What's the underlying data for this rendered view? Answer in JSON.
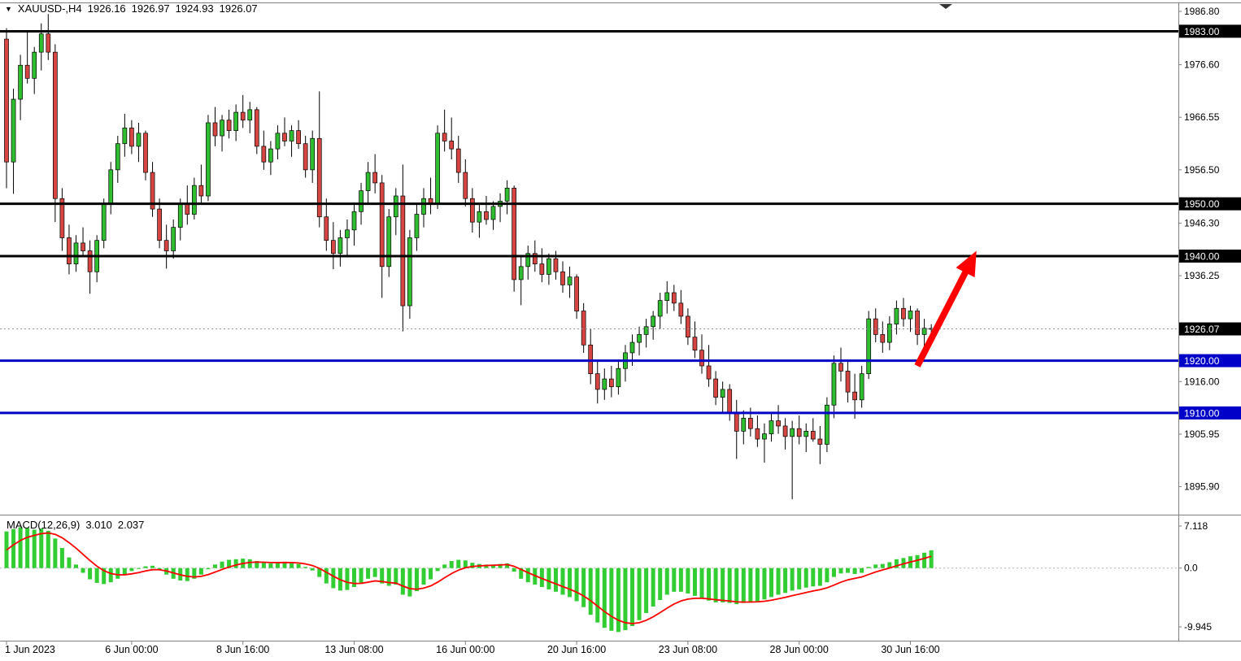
{
  "header": {
    "marker": "▼",
    "symbol_period": "XAUUSD-,H4",
    "open": "1926.16",
    "high": "1926.97",
    "low": "1924.93",
    "close": "1926.07"
  },
  "macd_panel": {
    "name": "MACD(12,26,9)",
    "macd_value": "3.010",
    "signal_value": "2.037"
  },
  "colors": {
    "up": "#2FBE2F",
    "down": "#D64541",
    "wick": "#000000",
    "macd_hist": "#32CD32",
    "signal": "#FF0000",
    "level_black": "#000000",
    "level_blue": "#0000C8",
    "arrow": "#FF0000",
    "border": "#808080",
    "axis_text": "#000000",
    "bg": "#FFFFFF"
  },
  "chart_data": [
    {
      "type": "candlestick",
      "title": "XAUUSD-,H4",
      "ylim": [
        1890.7,
        1988.2
      ],
      "y_ticks": [
        "1986.80",
        "1976.60",
        "1966.55",
        "1956.50",
        "1946.30",
        "1936.25",
        "1916.00",
        "1905.95",
        "1895.90"
      ],
      "x_labels": [
        {
          "bar": 0,
          "label": "1 Jun 2023"
        },
        {
          "bar": 18,
          "label": "6 Jun 00:00"
        },
        {
          "bar": 34,
          "label": "8 Jun 16:00"
        },
        {
          "bar": 50,
          "label": "13 Jun 08:00"
        },
        {
          "bar": 66,
          "label": "16 Jun 00:00"
        },
        {
          "bar": 82,
          "label": "20 Jun 16:00"
        },
        {
          "bar": 98,
          "label": "23 Jun 08:00"
        },
        {
          "bar": 114,
          "label": "28 Jun 00:00"
        },
        {
          "bar": 130,
          "label": "30 Jun 16:00"
        }
      ],
      "levels": [
        {
          "label": "1983.00",
          "value": 1983.0,
          "color": "#000000"
        },
        {
          "label": "1950.00",
          "value": 1950.0,
          "color": "#000000"
        },
        {
          "label": "1940.00",
          "value": 1940.0,
          "color": "#000000"
        },
        {
          "label": "1920.00",
          "value": 1920.0,
          "color": "#0000C8"
        },
        {
          "label": "1910.00",
          "value": 1910.0,
          "color": "#0000C8"
        }
      ],
      "current_price": {
        "label": "1926.07",
        "value": 1926.07
      },
      "annotations": [
        {
          "type": "arrow",
          "color": "#FF0000",
          "from": {
            "bar": 131,
            "price": 1919.0
          },
          "to": {
            "bar": 139.5,
            "price": 1941.0
          }
        }
      ],
      "candles": [
        [
          1981.5,
          1983.6,
          1953,
          1958
        ],
        [
          1958,
          1972,
          1951.9,
          1970
        ],
        [
          1970,
          1978.5,
          1966,
          1976.5
        ],
        [
          1976.5,
          1983,
          1973,
          1974
        ],
        [
          1974,
          1980,
          1971,
          1979
        ],
        [
          1979,
          1984.5,
          1975.5,
          1982.5
        ],
        [
          1982.5,
          1986.3,
          1977.5,
          1979
        ],
        [
          1979,
          1980.5,
          1946.5,
          1951
        ],
        [
          1951,
          1953,
          1941,
          1943.5
        ],
        [
          1943.5,
          1946,
          1936.5,
          1938.5
        ],
        [
          1938.5,
          1944,
          1937,
          1942.5
        ],
        [
          1942.5,
          1945.5,
          1940,
          1941
        ],
        [
          1941,
          1943,
          1932.8,
          1937
        ],
        [
          1937,
          1944,
          1935,
          1943
        ],
        [
          1943,
          1951,
          1941.5,
          1950
        ],
        [
          1950,
          1958,
          1948,
          1956.5
        ],
        [
          1956.5,
          1963,
          1954,
          1961.5
        ],
        [
          1961.5,
          1967.2,
          1959,
          1964.5
        ],
        [
          1964.5,
          1966,
          1959.5,
          1961
        ],
        [
          1961,
          1965.5,
          1958,
          1963.5
        ],
        [
          1963.5,
          1964,
          1954.5,
          1956
        ],
        [
          1956,
          1958,
          1947.5,
          1949
        ],
        [
          1949,
          1951,
          1941.5,
          1943
        ],
        [
          1943,
          1946,
          1937.6,
          1941
        ],
        [
          1941,
          1947,
          1939.5,
          1945.5
        ],
        [
          1945.5,
          1951,
          1943,
          1950
        ],
        [
          1950,
          1953.5,
          1946,
          1948
        ],
        [
          1948,
          1955,
          1947,
          1953.5
        ],
        [
          1953.5,
          1957.5,
          1950,
          1951.5
        ],
        [
          1951.5,
          1967,
          1950.5,
          1965.5
        ],
        [
          1965.5,
          1968.5,
          1961,
          1963
        ],
        [
          1963,
          1967,
          1960,
          1966
        ],
        [
          1966,
          1968,
          1962.5,
          1964
        ],
        [
          1964,
          1969,
          1962,
          1967.5
        ],
        [
          1967.5,
          1970.8,
          1964.5,
          1966
        ],
        [
          1966,
          1969.5,
          1963.5,
          1968
        ],
        [
          1968,
          1968.5,
          1959.5,
          1961
        ],
        [
          1961,
          1964,
          1956.5,
          1958
        ],
        [
          1958,
          1962,
          1955.5,
          1960.5
        ],
        [
          1960.5,
          1965,
          1958.5,
          1963.5
        ],
        [
          1963.5,
          1966.5,
          1961,
          1962
        ],
        [
          1962,
          1965,
          1959,
          1964
        ],
        [
          1964,
          1966,
          1960.5,
          1961.5
        ],
        [
          1961.5,
          1963,
          1955,
          1956.5
        ],
        [
          1956.5,
          1964,
          1954,
          1962.5
        ],
        [
          1962.5,
          1971.5,
          1945.5,
          1947.5
        ],
        [
          1947.5,
          1951,
          1941,
          1943
        ],
        [
          1943,
          1946.5,
          1937.5,
          1940.5
        ],
        [
          1940.5,
          1945,
          1938,
          1943.5
        ],
        [
          1943.5,
          1947,
          1940,
          1945
        ],
        [
          1945,
          1950,
          1942,
          1948.5
        ],
        [
          1948.5,
          1954,
          1946,
          1952.5
        ],
        [
          1952.5,
          1958,
          1950,
          1956
        ],
        [
          1956,
          1959.5,
          1952,
          1954
        ],
        [
          1954,
          1955.5,
          1932,
          1938
        ],
        [
          1938,
          1949,
          1936,
          1947.5
        ],
        [
          1947.5,
          1953,
          1944,
          1951.5
        ],
        [
          1951.5,
          1957.5,
          1925.6,
          1930.5
        ],
        [
          1930.5,
          1945,
          1928,
          1943.5
        ],
        [
          1943.5,
          1950,
          1941,
          1948
        ],
        [
          1948,
          1953,
          1945.5,
          1951
        ],
        [
          1951,
          1955,
          1948,
          1950
        ],
        [
          1950,
          1965,
          1949,
          1963.5
        ],
        [
          1963.5,
          1968,
          1960,
          1962
        ],
        [
          1962,
          1966.5,
          1958.5,
          1960.5
        ],
        [
          1960.5,
          1963,
          1954,
          1956
        ],
        [
          1956,
          1958.5,
          1949.5,
          1951
        ],
        [
          1951,
          1953,
          1944.5,
          1946.5
        ],
        [
          1946.5,
          1950,
          1943.5,
          1948.5
        ],
        [
          1948.5,
          1951.5,
          1946,
          1947
        ],
        [
          1947,
          1950.5,
          1945,
          1949.5
        ],
        [
          1949.5,
          1952,
          1946.5,
          1950.5
        ],
        [
          1950.5,
          1954.5,
          1948,
          1953
        ],
        [
          1953,
          1953.5,
          1933.2,
          1935.5
        ],
        [
          1935.5,
          1940,
          1930.6,
          1938
        ],
        [
          1938,
          1942,
          1935.5,
          1940.5
        ],
        [
          1940.5,
          1943,
          1937,
          1938.5
        ],
        [
          1938.5,
          1941.5,
          1935,
          1936.5
        ],
        [
          1936.5,
          1940.5,
          1934.5,
          1939.5
        ],
        [
          1939.5,
          1941,
          1935.5,
          1937
        ],
        [
          1937,
          1939,
          1933,
          1934.5
        ],
        [
          1934.5,
          1938,
          1932,
          1936
        ],
        [
          1936,
          1936.5,
          1928,
          1929.5
        ],
        [
          1929.5,
          1931,
          1921.5,
          1923
        ],
        [
          1923,
          1926,
          1915.5,
          1917.5
        ],
        [
          1917.5,
          1920,
          1911.8,
          1914.5
        ],
        [
          1914.5,
          1918.5,
          1912.5,
          1916.5
        ],
        [
          1916.5,
          1919,
          1913,
          1915
        ],
        [
          1915,
          1920,
          1913.5,
          1918.5
        ],
        [
          1918.5,
          1923,
          1916,
          1921.5
        ],
        [
          1921.5,
          1925,
          1919,
          1923.5
        ],
        [
          1923.5,
          1926.5,
          1921,
          1925
        ],
        [
          1925,
          1928,
          1922.5,
          1926.5
        ],
        [
          1926.5,
          1929.5,
          1924,
          1928.5
        ],
        [
          1928.5,
          1933,
          1926,
          1931.5
        ],
        [
          1931.5,
          1935.2,
          1929,
          1933
        ],
        [
          1933,
          1934.5,
          1929.5,
          1931
        ],
        [
          1931,
          1933.5,
          1927,
          1928.5
        ],
        [
          1928.5,
          1930,
          1923,
          1924.5
        ],
        [
          1924.5,
          1927.5,
          1920.5,
          1922
        ],
        [
          1922,
          1925,
          1917.5,
          1919
        ],
        [
          1919,
          1923,
          1915,
          1916.5
        ],
        [
          1916.5,
          1918,
          1911.5,
          1913
        ],
        [
          1913,
          1916,
          1910,
          1914.5
        ],
        [
          1914.5,
          1915.5,
          1908.5,
          1910
        ],
        [
          1910,
          1912.5,
          1901.2,
          1906.5
        ],
        [
          1906.5,
          1910.5,
          1904,
          1909
        ],
        [
          1909,
          1911,
          1905.5,
          1907
        ],
        [
          1907,
          1909.5,
          1903.5,
          1905
        ],
        [
          1905,
          1908,
          1900.5,
          1906
        ],
        [
          1906,
          1910,
          1904.5,
          1908.5
        ],
        [
          1908.5,
          1911.5,
          1906,
          1907.5
        ],
        [
          1907.5,
          1909,
          1903,
          1905.5
        ],
        [
          1905.5,
          1908.5,
          1893.5,
          1907
        ],
        [
          1907,
          1909.5,
          1904,
          1905.5
        ],
        [
          1905.5,
          1908,
          1902.5,
          1906.5
        ],
        [
          1906.5,
          1909,
          1904.5,
          1905
        ],
        [
          1905,
          1907.5,
          1900.2,
          1904
        ],
        [
          1904,
          1913,
          1902.5,
          1911.5
        ],
        [
          1911.5,
          1921,
          1909,
          1919.5
        ],
        [
          1919.5,
          1922.5,
          1916,
          1918
        ],
        [
          1918,
          1920,
          1912,
          1914
        ],
        [
          1914,
          1917.5,
          1908.9,
          1912.5
        ],
        [
          1912.5,
          1919,
          1911,
          1917.5
        ],
        [
          1917.5,
          1929.5,
          1916.5,
          1928
        ],
        [
          1928,
          1930,
          1923.5,
          1925
        ],
        [
          1925,
          1927.5,
          1921.5,
          1923.5
        ],
        [
          1923.5,
          1928.5,
          1922,
          1927
        ],
        [
          1927,
          1931.5,
          1925,
          1930
        ],
        [
          1930,
          1932,
          1926.5,
          1928
        ],
        [
          1928,
          1930.5,
          1925.5,
          1929.5
        ],
        [
          1929.5,
          1930,
          1923,
          1925
        ],
        [
          1925,
          1928,
          1922.5,
          1926.2
        ],
        [
          1926.16,
          1926.97,
          1924.93,
          1926.07
        ]
      ]
    },
    {
      "type": "bar",
      "name": "MACD(12,26,9)",
      "ylim": [
        -12.0,
        7.8
      ],
      "y_ticks": [
        "7.118",
        "0.0",
        "-9.945"
      ],
      "last_macd": 3.01,
      "last_signal": 2.037,
      "signal_start": 2.0,
      "signal_smoothing": 0.25,
      "macd": [
        6.2,
        6.6,
        6.9,
        6.8,
        6.5,
        6.7,
        6.3,
        5.0,
        3.4,
        1.8,
        0.6,
        -0.8,
        -1.9,
        -2.5,
        -2.7,
        -2.4,
        -1.8,
        -1.1,
        -0.5,
        -0.1,
        0.3,
        0.4,
        -0.3,
        -1.1,
        -1.8,
        -2.1,
        -2.2,
        -1.8,
        -1.1,
        -0.2,
        0.6,
        1.1,
        1.4,
        1.5,
        1.6,
        1.5,
        1.2,
        0.9,
        0.8,
        0.9,
        1.0,
        0.9,
        0.7,
        0.2,
        -0.4,
        -1.5,
        -2.6,
        -3.4,
        -3.8,
        -3.7,
        -3.2,
        -2.5,
        -1.8,
        -1.5,
        -2.6,
        -3.0,
        -2.8,
        -4.5,
        -4.8,
        -3.9,
        -2.8,
        -1.9,
        -0.5,
        0.6,
        1.2,
        1.4,
        1.3,
        0.9,
        0.7,
        0.6,
        0.6,
        0.7,
        0.8,
        -0.6,
        -1.8,
        -2.4,
        -2.8,
        -3.2,
        -3.6,
        -4.0,
        -4.5,
        -4.9,
        -5.6,
        -6.6,
        -7.9,
        -9.2,
        -10.1,
        -10.6,
        -10.8,
        -10.5,
        -9.8,
        -8.8,
        -7.6,
        -6.5,
        -5.4,
        -4.5,
        -4.0,
        -4.0,
        -4.3,
        -4.7,
        -5.1,
        -5.5,
        -5.8,
        -5.8,
        -5.9,
        -6.1,
        -5.9,
        -5.7,
        -5.6,
        -5.3,
        -4.9,
        -4.5,
        -4.2,
        -3.8,
        -3.6,
        -3.3,
        -3.1,
        -3.0,
        -2.4,
        -1.5,
        -0.9,
        -0.8,
        -1.0,
        -0.8,
        0.2,
        0.6,
        0.7,
        1.0,
        1.5,
        1.7,
        2.0,
        2.2,
        2.6,
        3.01
      ]
    }
  ]
}
